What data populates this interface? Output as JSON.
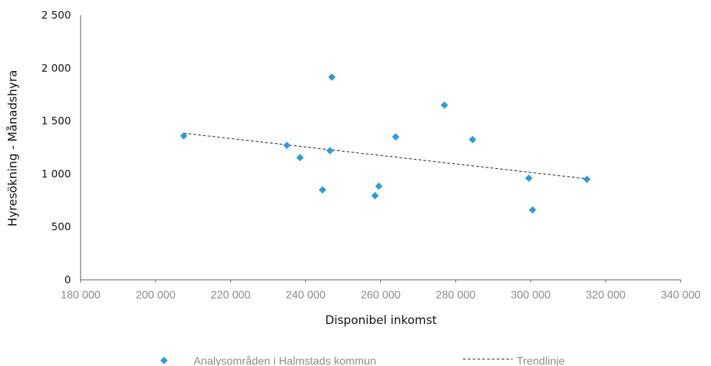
{
  "chart_data": {
    "type": "scatter",
    "title": "",
    "xlabel": "Disponibel inkomst",
    "ylabel": "Hyresökning - Månadshyra",
    "xlim": [
      180000,
      340000
    ],
    "ylim": [
      0,
      2500
    ],
    "x_ticks": [
      180000,
      200000,
      220000,
      240000,
      260000,
      280000,
      300000,
      320000,
      340000
    ],
    "x_tick_labels": [
      "180 000",
      "200 000",
      "220 000",
      "240 000",
      "260 000",
      "280 000",
      "300 000",
      "320 000",
      "340 000"
    ],
    "y_ticks": [
      0,
      500,
      1000,
      1500,
      2000,
      2500
    ],
    "y_tick_labels": [
      "0",
      "500",
      "1 000",
      "1 500",
      "2 000",
      "2 500"
    ],
    "series": [
      {
        "name": "Analysområden i Halmstads kommun",
        "marker": "diamond",
        "color": "#2e9bd9",
        "points": [
          [
            207500,
            1360
          ],
          [
            235000,
            1270
          ],
          [
            238500,
            1155
          ],
          [
            244500,
            850
          ],
          [
            246500,
            1220
          ],
          [
            247000,
            1915
          ],
          [
            258500,
            795
          ],
          [
            259500,
            885
          ],
          [
            264000,
            1350
          ],
          [
            277000,
            1650
          ],
          [
            284500,
            1325
          ],
          [
            299500,
            960
          ],
          [
            300500,
            660
          ],
          [
            315000,
            950
          ]
        ]
      },
      {
        "name": "Trendlinje",
        "type": "line",
        "style": "dashed",
        "color": "#111111",
        "points": [
          [
            207500,
            1385
          ],
          [
            315000,
            955
          ]
        ]
      }
    ],
    "legend": "bottom",
    "grid": false
  }
}
